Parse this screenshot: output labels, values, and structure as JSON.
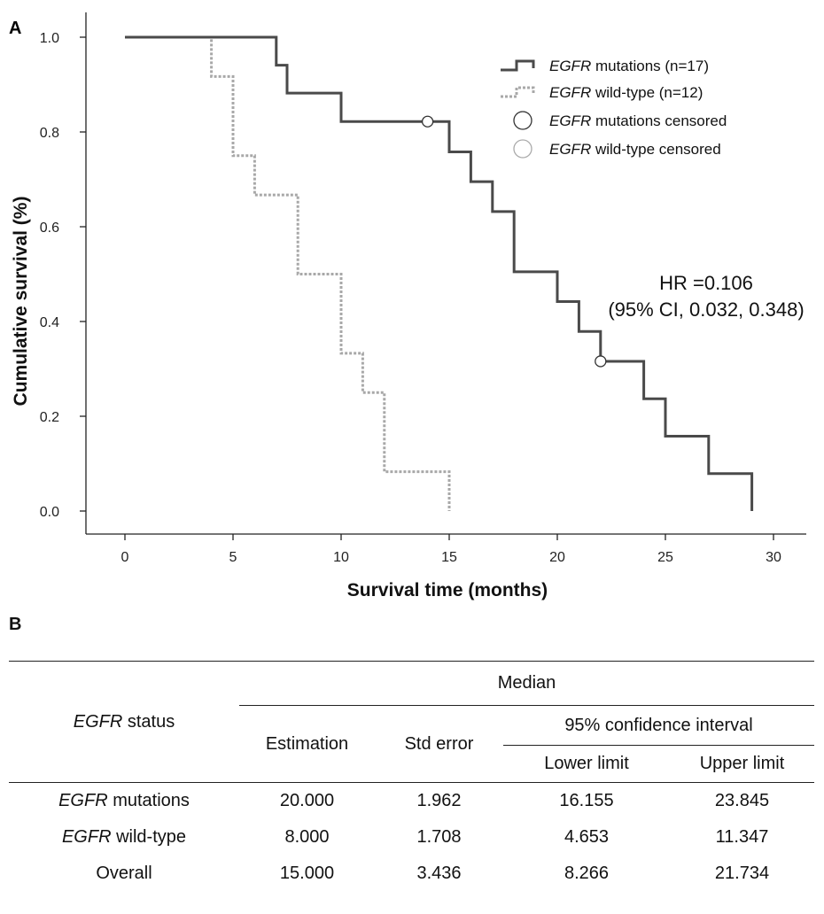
{
  "panel_a_label": "A",
  "panel_b_label": "B",
  "chart_data": {
    "type": "line",
    "subtype": "kaplan-meier-step",
    "xlabel": "Survival time (months)",
    "ylabel": "Cumulative survival (%)",
    "xlim": [
      -2,
      31.5
    ],
    "ylim": [
      -0.05,
      1.05
    ],
    "xticks": [
      0,
      5,
      10,
      15,
      20,
      25,
      30
    ],
    "yticks": [
      "0.0",
      "0.2",
      "0.4",
      "0.6",
      "0.8",
      "1.0"
    ],
    "legend_position": "top-right",
    "series": [
      {
        "name_italic": "EGFR",
        "name_rest": " mutations (n=17)",
        "style": "solid",
        "color": "#4a4a4a",
        "steps": [
          [
            0,
            1.0
          ],
          [
            7,
            0.941
          ],
          [
            7.5,
            0.882
          ],
          [
            8.5,
            0.882
          ],
          [
            10,
            0.822
          ],
          [
            15,
            0.758
          ],
          [
            16,
            0.695
          ],
          [
            17,
            0.632
          ],
          [
            18,
            0.505
          ],
          [
            20,
            0.442
          ],
          [
            21,
            0.379
          ],
          [
            22,
            0.316
          ],
          [
            24,
            0.237
          ],
          [
            25,
            0.158
          ],
          [
            27,
            0.079
          ],
          [
            29,
            0.0
          ]
        ],
        "censored": [
          [
            14,
            0.822
          ],
          [
            22,
            0.316
          ]
        ]
      },
      {
        "name_italic": "EGFR",
        "name_rest": " wild-type (n=12)",
        "style": "dotted",
        "color": "#a8a8a8",
        "steps": [
          [
            0,
            1.0
          ],
          [
            4,
            0.917
          ],
          [
            5,
            0.75
          ],
          [
            6,
            0.667
          ],
          [
            8,
            0.5
          ],
          [
            10,
            0.333
          ],
          [
            11,
            0.25
          ],
          [
            12,
            0.083
          ],
          [
            15,
            0.0
          ]
        ],
        "censored": []
      }
    ],
    "censor_legend": [
      {
        "name_italic": "EGFR",
        "name_rest": " mutations censored",
        "color": "#333333"
      },
      {
        "name_italic": "EGFR",
        "name_rest": " wild-type censored",
        "color": "#aaaaaa"
      }
    ],
    "annotation": {
      "line1": "HR =0.106",
      "line2": "(95% CI, 0.032, 0.348)"
    }
  },
  "table": {
    "status_header_italic": "EGFR",
    "status_header_rest": " status",
    "median_header": "Median",
    "estimation_header": "Estimation",
    "std_error_header": "Std error",
    "ci_header": "95% confidence interval",
    "lower_header": "Lower limit",
    "upper_header": "Upper limit",
    "rows": [
      {
        "label_italic": "EGFR",
        "label_rest": " mutations",
        "estimation": "20.000",
        "std_error": "1.962",
        "lower": "16.155",
        "upper": "23.845"
      },
      {
        "label_italic": "EGFR",
        "label_rest": " wild-type",
        "estimation": "8.000",
        "std_error": "1.708",
        "lower": "4.653",
        "upper": "11.347"
      },
      {
        "label_italic": "",
        "label_rest": "Overall",
        "estimation": "15.000",
        "std_error": "3.436",
        "lower": "8.266",
        "upper": "21.734"
      }
    ]
  }
}
